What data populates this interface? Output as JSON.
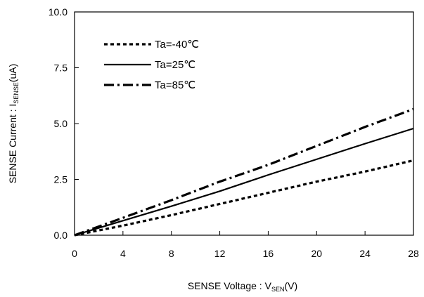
{
  "chart_data": {
    "type": "line",
    "x_axis": {
      "label_main": "SENSE Voltage : V",
      "label_sub": "SEN",
      "label_unit": "(V)",
      "range": [
        0,
        28
      ],
      "ticks": [
        0,
        4,
        8,
        12,
        16,
        20,
        24,
        28
      ],
      "tick_labels": [
        "0",
        "4",
        "8",
        "12",
        "16",
        "20",
        "24",
        "28"
      ]
    },
    "y_axis": {
      "label_main": "SENSE Current : I",
      "label_sub": "SENSE",
      "label_unit": "(uA)",
      "range": [
        0,
        10
      ],
      "ticks": [
        0,
        2.5,
        5,
        7.5,
        10
      ],
      "tick_labels": [
        "0.0",
        "2.5",
        "5.0",
        "7.5",
        "10.0"
      ]
    },
    "grid": false,
    "legend_position": "top-left",
    "series": [
      {
        "name": "Ta=-40℃",
        "dash": "dotted",
        "x": [
          0,
          4,
          8,
          12,
          16,
          20,
          24,
          28
        ],
        "y": [
          0,
          0.43,
          0.9,
          1.4,
          1.9,
          2.4,
          2.85,
          3.35
        ]
      },
      {
        "name": "Ta=25℃",
        "dash": "solid",
        "x": [
          0,
          4,
          8,
          12,
          16,
          20,
          24,
          28
        ],
        "y": [
          0,
          0.65,
          1.3,
          1.97,
          2.7,
          3.4,
          4.1,
          4.78
        ]
      },
      {
        "name": "Ta=85℃",
        "dash": "dash-dot",
        "x": [
          0,
          4,
          8,
          12,
          16,
          20,
          24,
          28
        ],
        "y": [
          0,
          0.78,
          1.57,
          2.4,
          3.15,
          4.0,
          4.85,
          5.65
        ]
      }
    ]
  },
  "colors": {
    "line": "#000000",
    "axis": "#000000",
    "background": "#ffffff"
  }
}
